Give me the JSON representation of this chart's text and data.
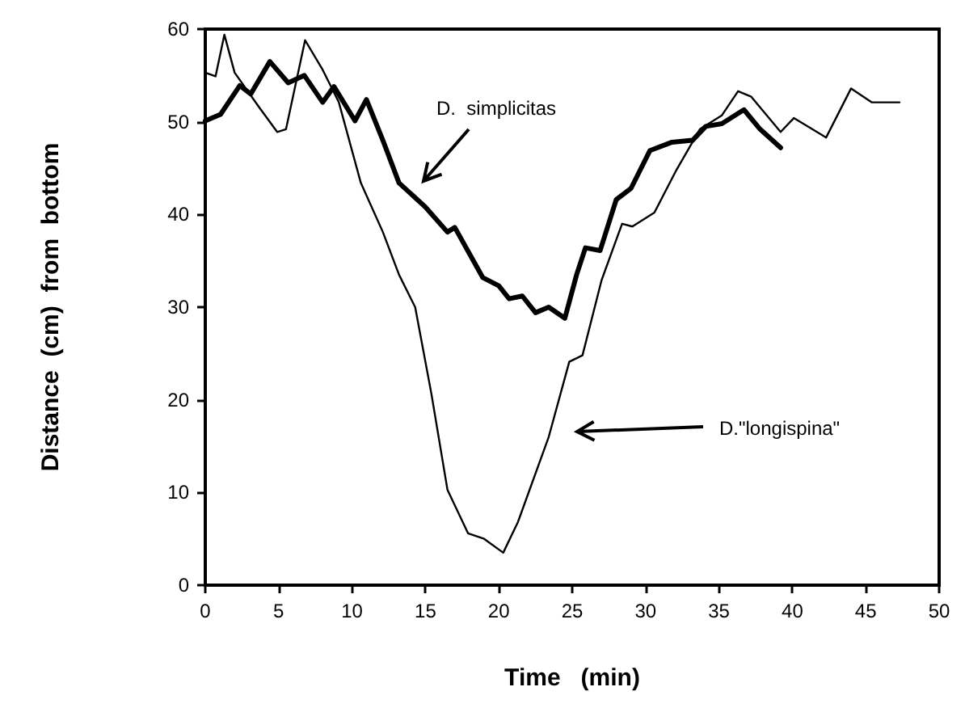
{
  "chart_data": {
    "type": "line",
    "xlabel": "Time   (min)",
    "ylabel": "Distance  (cm)  from  bottom",
    "xlim": [
      0,
      50
    ],
    "xticks": [
      0,
      5,
      10,
      15,
      20,
      25,
      30,
      35,
      40,
      45,
      50
    ],
    "ylim": [
      0,
      60
    ],
    "yticks": [
      0,
      10,
      20,
      30,
      40,
      50,
      60
    ],
    "grid": false,
    "marker": "none",
    "line_style": "solid",
    "annotations": [
      "D.  simplicitas",
      "D.\"longispina\""
    ],
    "series": [
      {
        "color": "#000000",
        "x": [
          0,
          1.04,
          2.35,
          3.1,
          4.4,
          5.65,
          6.75,
          8.0,
          8.77,
          10.2,
          10.98,
          12.1,
          13.2,
          15.0,
          16.5,
          17.0,
          18.9,
          20.0,
          20.7,
          21.6,
          22.5,
          23.4,
          24.5,
          25.3,
          25.9,
          26.9,
          28.0,
          29.0,
          30.3,
          31.8,
          33.2,
          34.1,
          35.2,
          36.7,
          37.8,
          39.2
        ],
        "values": [
          50.1,
          50.8,
          53.9,
          53.0,
          56.5,
          54.2,
          55.0,
          52.1,
          53.8,
          50.1,
          52.4,
          48.0,
          43.4,
          40.8,
          38.1,
          38.6,
          33.2,
          32.3,
          30.9,
          31.2,
          29.4,
          30.0,
          28.8,
          33.5,
          36.4,
          36.1,
          41.6,
          42.8,
          46.9,
          47.8,
          48.0,
          49.5,
          49.8,
          51.3,
          49.2,
          47.2
        ]
      },
      {
        "color": "#000000",
        "x": [
          0,
          0.7,
          1.3,
          2.0,
          3.7,
          4.9,
          5.5,
          6.8,
          8.0,
          9.1,
          10.6,
          12.1,
          13.2,
          14.3,
          15.4,
          16.5,
          17.9,
          19.0,
          20.3,
          21.3,
          23.4,
          24.8,
          25.7,
          27.0,
          28.4,
          29.1,
          30.6,
          32.1,
          33.7,
          35.2,
          36.3,
          37.2,
          39.2,
          40.1,
          42.3,
          44.0,
          45.4,
          47.3
        ],
        "values": [
          55.3,
          54.9,
          59.4,
          55.3,
          51.5,
          48.9,
          49.2,
          58.8,
          55.6,
          52.1,
          43.4,
          38.1,
          33.5,
          30.0,
          20.7,
          10.3,
          5.6,
          5.0,
          3.5,
          6.8,
          16.0,
          24.1,
          24.8,
          32.9,
          39.0,
          38.7,
          40.2,
          44.8,
          49.2,
          50.7,
          53.3,
          52.7,
          48.9,
          50.4,
          48.3,
          53.6,
          52.1,
          52.1
        ]
      }
    ]
  }
}
